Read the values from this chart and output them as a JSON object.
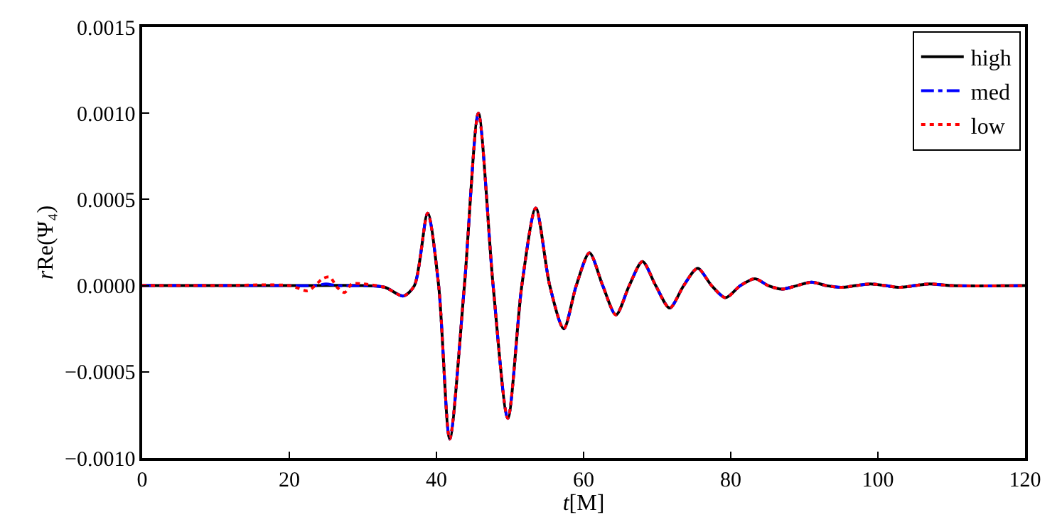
{
  "chart_data": {
    "type": "line",
    "xlabel": "t[M]",
    "ylabel": "rRe(Ψ₄)",
    "xlim": [
      0,
      120
    ],
    "xticks": [
      0,
      20,
      40,
      60,
      80,
      100,
      120
    ],
    "ylim": [
      -0.001,
      0.0015
    ],
    "yticks": [
      {
        "value": -0.001,
        "label": "−0.0010"
      },
      {
        "value": -0.0005,
        "label": "−0.0005"
      },
      {
        "value": 0,
        "label": "0.0000"
      },
      {
        "value": 0.0005,
        "label": "0.0005"
      },
      {
        "value": 0.001,
        "label": "0.0010"
      },
      {
        "value": 0.0015,
        "label": "0.0015"
      }
    ],
    "legend": "top right",
    "marker": "none",
    "series": [
      {
        "name": "high",
        "color": "#000000",
        "line_style": "solid",
        "x": [
          0,
          10,
          20,
          30,
          33,
          35.5,
          37,
          38.8,
          40.3,
          41.8,
          43.8,
          45.7,
          47.7,
          49.7,
          51.6,
          53.5,
          55.4,
          57.3,
          59,
          60.8,
          62.6,
          64.4,
          66.2,
          68,
          69.8,
          71.7,
          73.6,
          75.5,
          77.4,
          79.3,
          81.3,
          83.3,
          85.1,
          87,
          89,
          91,
          93,
          95,
          97,
          99,
          101,
          103,
          105,
          107,
          110,
          120
        ],
        "values": [
          0,
          0,
          0,
          0,
          -1e-05,
          -6e-05,
          0,
          0.00042,
          0,
          -0.00089,
          0,
          0.001,
          0,
          -0.00077,
          0,
          0.00045,
          0,
          -0.00025,
          0,
          0.00019,
          0,
          -0.00017,
          0,
          0.00014,
          0,
          -0.00013,
          0,
          0.0001,
          0,
          -7e-05,
          0,
          4e-05,
          0,
          -2e-05,
          0,
          2e-05,
          0,
          -1e-05,
          0,
          1e-05,
          0,
          -1e-05,
          0,
          1e-05,
          0,
          0
        ]
      },
      {
        "name": "med",
        "color": "#0000ff",
        "line_style": "dashdot",
        "x": [
          0,
          10,
          20,
          23.5,
          25,
          26.5,
          30,
          33,
          35.5,
          37,
          38.8,
          40.3,
          41.8,
          43.8,
          45.7,
          47.7,
          49.7,
          51.6,
          53.5,
          55.4,
          57.3,
          59,
          60.8,
          62.6,
          64.4,
          66.2,
          68,
          69.8,
          71.7,
          73.6,
          75.5,
          77.4,
          79.3,
          81.3,
          83.3,
          85.1,
          87,
          89,
          91,
          93,
          95,
          97,
          99,
          101,
          103,
          105,
          107,
          110,
          120
        ],
        "values": [
          0,
          0,
          0,
          0,
          1e-05,
          0,
          0,
          -1e-05,
          -6e-05,
          0,
          0.00042,
          0,
          -0.00089,
          0,
          0.001,
          0,
          -0.00077,
          0,
          0.00045,
          0,
          -0.00025,
          0,
          0.00019,
          0,
          -0.00017,
          0,
          0.00014,
          0,
          -0.00013,
          0,
          0.0001,
          0,
          -7e-05,
          0,
          4e-05,
          0,
          -2e-05,
          0,
          2e-05,
          0,
          -1e-05,
          0,
          1e-05,
          0,
          -1e-05,
          0,
          1e-05,
          0,
          0
        ]
      },
      {
        "name": "low",
        "color": "#ff0000",
        "line_style": "dotted",
        "x": [
          0,
          10,
          20,
          22.5,
          23.5,
          24.5,
          25.5,
          26.5,
          27.5,
          28.5,
          30,
          33,
          35.5,
          37,
          38.8,
          40.3,
          41.8,
          43.8,
          45.7,
          47.7,
          49.7,
          51.6,
          53.5,
          55.4,
          57.3,
          59,
          60.8,
          62.6,
          64.4,
          66.2,
          68,
          69.8,
          71.7,
          73.6,
          75.5,
          77.4,
          79.3,
          81.3,
          83.3,
          85.1,
          87,
          89,
          91,
          93,
          95,
          97,
          99,
          101,
          103,
          105,
          107,
          110,
          120
        ],
        "values": [
          0,
          0,
          0,
          -3e-05,
          0,
          4e-05,
          5e-05,
          -1e-05,
          -4e-05,
          1e-05,
          1e-05,
          -1e-05,
          -6e-05,
          0,
          0.00042,
          0,
          -0.00089,
          0,
          0.001,
          0,
          -0.00077,
          0,
          0.00045,
          0,
          -0.00025,
          0,
          0.00019,
          0,
          -0.00017,
          0,
          0.00014,
          0,
          -0.00013,
          0,
          0.0001,
          0,
          -7e-05,
          0,
          4e-05,
          0,
          -2e-05,
          0,
          2e-05,
          0,
          -1e-05,
          0,
          1e-05,
          0,
          -1e-05,
          0,
          1e-05,
          0,
          0
        ]
      }
    ]
  }
}
